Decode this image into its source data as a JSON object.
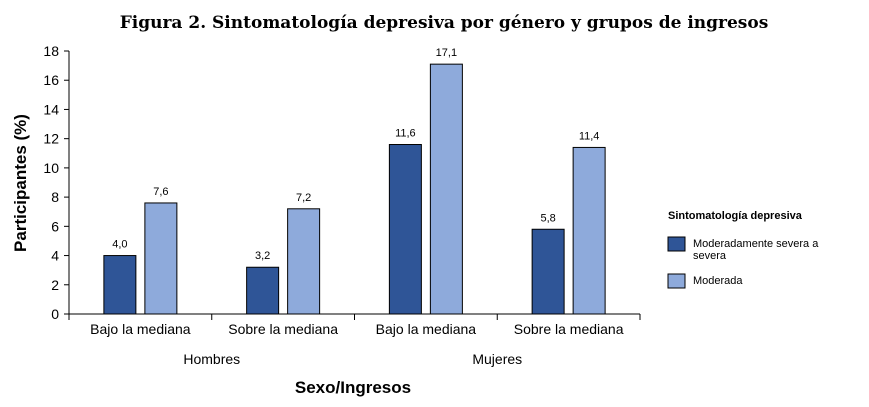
{
  "chart_data": {
    "type": "bar",
    "title": "Figura 2. Sintomatología depresiva por género y grupos de ingresos",
    "xlabel": "Sexo/Ingresos",
    "ylabel": "Participantes (%)",
    "ylim": [
      0,
      18
    ],
    "yticks": [
      "0",
      "2",
      "4",
      "6",
      "8",
      "10",
      "12",
      "14",
      "16",
      "18"
    ],
    "categories": [
      "Bajo la mediana",
      "Sobre la mediana",
      "Bajo la mediana",
      "Sobre la mediana"
    ],
    "groups": [
      {
        "label": "Hombres"
      },
      {
        "label": "Mujeres"
      }
    ],
    "series": [
      {
        "name": "Moderadamente severa a severa",
        "color": "#2f5597",
        "values": [
          4.0,
          3.2,
          11.6,
          5.8
        ],
        "labels": [
          "4,0",
          "3,2",
          "11,6",
          "5,8"
        ]
      },
      {
        "name": "Moderada",
        "color": "#8eaadb",
        "values": [
          7.6,
          7.2,
          17.1,
          11.4
        ],
        "labels": [
          "7,6",
          "7,2",
          "17,1",
          "11,4"
        ]
      }
    ],
    "legend": {
      "title": "Sintomatología depresiva",
      "position": "right",
      "entries": [
        {
          "lines": [
            "Moderadamente severa a",
            "severa"
          ]
        },
        {
          "lines": [
            "Moderada"
          ]
        }
      ]
    },
    "grid": false
  }
}
